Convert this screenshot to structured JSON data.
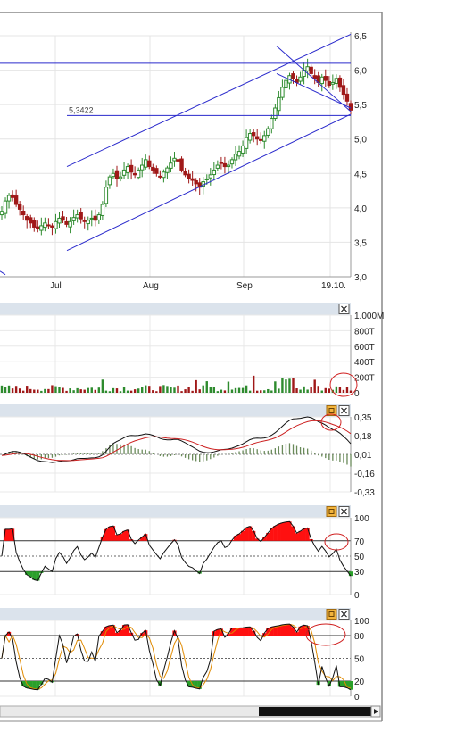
{
  "price_panel": {
    "y_ticks": [
      "6,5",
      "6,0",
      "5,5",
      "5,0",
      "4,5",
      "4,0",
      "3,5",
      "3,0"
    ],
    "x_ticks": [
      "Jul",
      "Aug",
      "Sep",
      "19.10."
    ],
    "level_label": "5,3422"
  },
  "volume_panel": {
    "y_ticks": [
      "1.000M",
      "800T",
      "600T",
      "400T",
      "200T",
      "0"
    ]
  },
  "macd_panel": {
    "y_ticks": [
      "0,35",
      "0,18",
      "0,01",
      "-0,16",
      "-0,33"
    ]
  },
  "rsi_panel": {
    "y_ticks": [
      "100",
      "70",
      "50",
      "30",
      "0"
    ]
  },
  "stoch_panel": {
    "y_ticks": [
      "100",
      "80",
      "50",
      "20",
      "0"
    ]
  },
  "colors": {
    "up": "#2e8b2e",
    "down": "#a01818",
    "trendline": "#2a2acc",
    "macd_signal": "#cc2020",
    "stoch_d": "#e08a00",
    "overbought_fill": "#ff1010",
    "oversold_fill": "#2aa02a",
    "panel_header": "#dbe3ec",
    "annotation_circle": "#d02020"
  },
  "icons": [
    "close-icon",
    "settings-icon"
  ],
  "chart_data": {
    "type": "candlestick",
    "price_range": [
      3.0,
      6.5
    ],
    "x_labels": [
      "Jul",
      "Aug",
      "Sep",
      "19.10."
    ],
    "close_series": [
      3.95,
      4.1,
      4.18,
      4.15,
      4.05,
      3.98,
      3.9,
      3.82,
      3.78,
      3.72,
      3.7,
      3.74,
      3.78,
      3.75,
      3.72,
      3.8,
      3.85,
      3.82,
      3.76,
      3.8,
      3.86,
      3.9,
      3.84,
      3.8,
      3.82,
      3.85,
      3.82,
      3.9,
      4.05,
      4.3,
      4.45,
      4.5,
      4.42,
      4.45,
      4.55,
      4.6,
      4.52,
      4.48,
      4.55,
      4.62,
      4.7,
      4.6,
      4.55,
      4.5,
      4.45,
      4.52,
      4.58,
      4.65,
      4.72,
      4.68,
      4.55,
      4.48,
      4.42,
      4.4,
      4.35,
      4.3,
      4.38,
      4.42,
      4.48,
      4.55,
      4.62,
      4.65,
      4.6,
      4.62,
      4.7,
      4.78,
      4.82,
      4.9,
      5.02,
      5.08,
      5.05,
      5.0,
      4.98,
      5.05,
      5.15,
      5.3,
      5.45,
      5.6,
      5.75,
      5.85,
      5.92,
      5.88,
      5.82,
      5.9,
      6.0,
      6.05,
      5.95,
      5.88,
      5.82,
      5.9,
      5.85,
      5.78,
      5.82,
      5.88,
      5.75,
      5.65,
      5.55,
      5.42
    ],
    "horizontal_levels": [
      6.1,
      5.3422
    ],
    "indicators": {
      "volume_axis": "0 – 1.000M",
      "macd_axis": [
        -0.33,
        0.35
      ],
      "rsi_levels": [
        30,
        50,
        70
      ],
      "stochastic_levels": [
        20,
        50,
        80
      ]
    }
  }
}
